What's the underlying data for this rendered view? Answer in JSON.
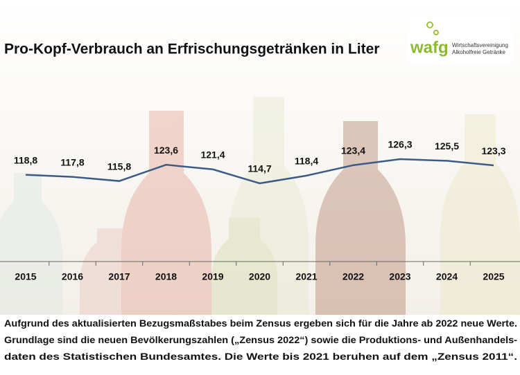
{
  "chart_data": {
    "type": "line",
    "title": "Pro-Kopf-Verbrauch an Erfrischungsgetränken in Liter",
    "categories": [
      "2015",
      "2016",
      "2017",
      "2018",
      "2019",
      "2020",
      "2021",
      "2022",
      "2023",
      "2024",
      "2025"
    ],
    "series": [
      {
        "color": "#3b5b84",
        "values": [
          118.8,
          117.8,
          115.8,
          123.6,
          121.4,
          114.7,
          118.4,
          123.4,
          126.3,
          125.5,
          123.3
        ],
        "value_labels": [
          "118,8",
          "117,8",
          "115,8",
          "123,6",
          "121,4",
          "114,7",
          "118,4",
          "123,4",
          "126,3",
          "125,5",
          "123,3"
        ]
      }
    ],
    "note": [
      "Aufgrund des aktualisierten Bezugsmaßstabes beim Zensus ergeben sich für die Jahre ab 2022 neue Werte.",
      "Grundlage sind die neuen Bevölkerungszahlen („Zensus 2022“) sowie die Produktions- und Außenhandels-",
      "daten des Statistischen Bundesamtes. Die Werte bis 2021 beruhen auf dem „Zensus 2011“."
    ]
  },
  "logo": {
    "mark": "wafg",
    "line1": "Wirtschaftsvereinigung",
    "line2": "Alkoholfreie Getränke"
  }
}
